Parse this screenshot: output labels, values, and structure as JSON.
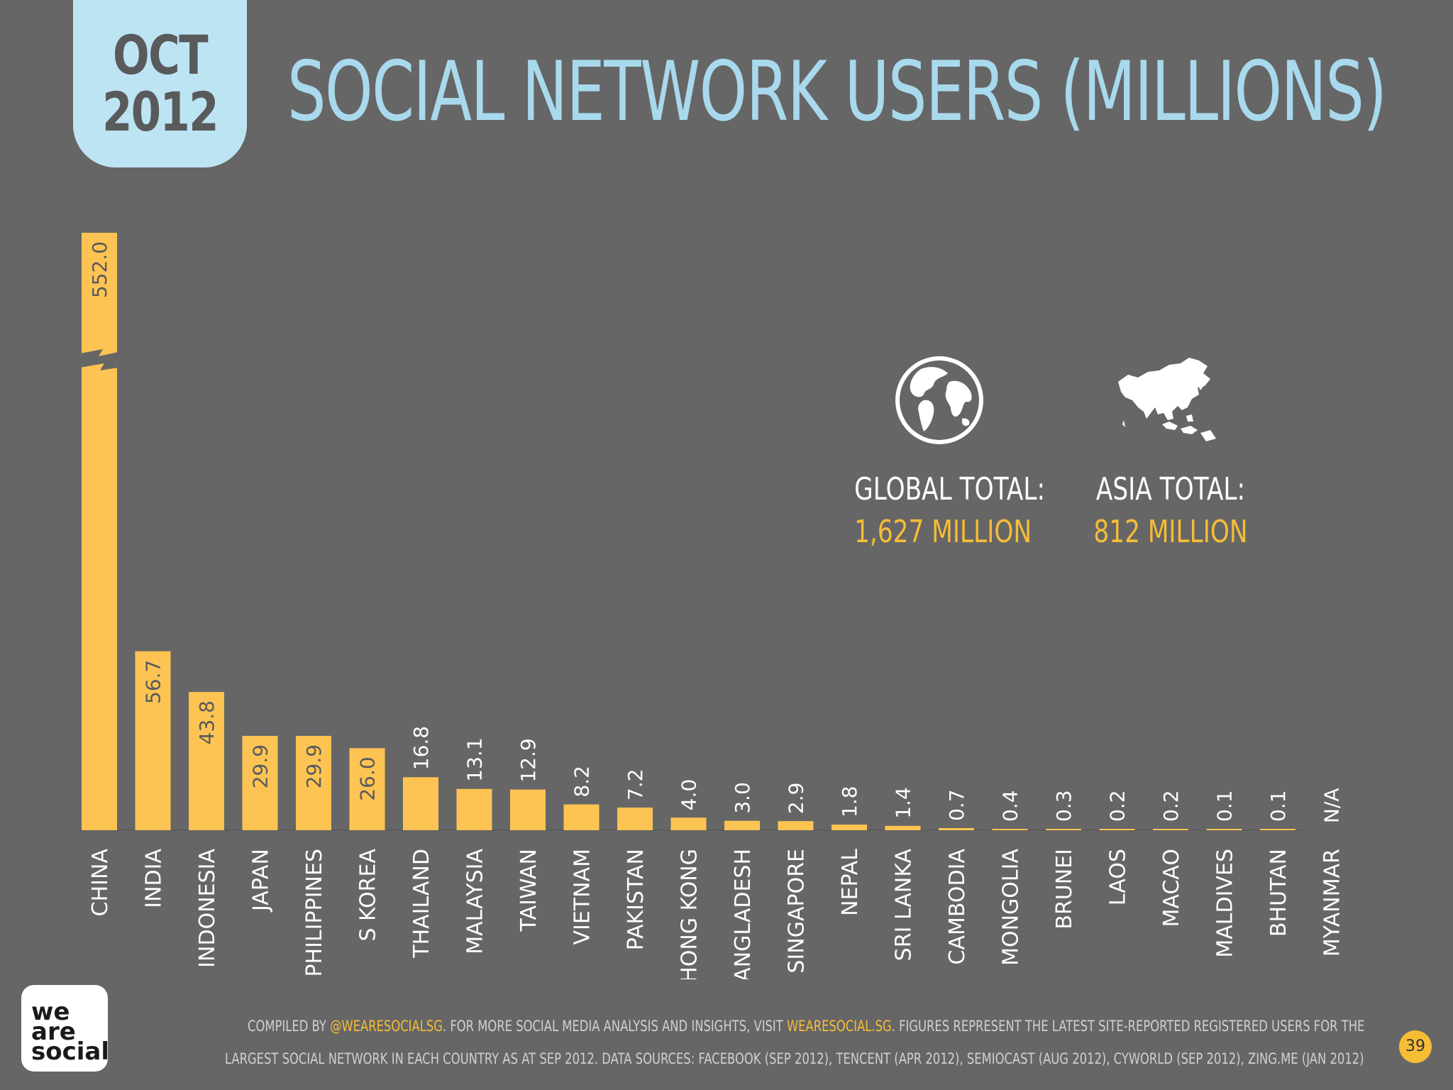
{
  "header": {
    "month": "OCT",
    "year": "2012",
    "title": "SOCIAL NETWORK USERS (MILLIONS)"
  },
  "stats": {
    "global_label": "GLOBAL TOTAL:",
    "global_value": "1,627 MILLION",
    "asia_label": "ASIA TOTAL:",
    "asia_value": "812 MILLION"
  },
  "footer": {
    "line1_a": "COMPILED BY ",
    "line1_link1": "@WEARESOCIALSG",
    "line1_b": ". FOR MORE SOCIAL MEDIA ANALYSIS AND INSIGHTS, VISIT ",
    "line1_link2": "WEARESOCIAL.SG",
    "line1_c": ". FIGURES REPRESENT THE LATEST SITE-REPORTED REGISTERED USERS FOR THE",
    "line2": "LARGEST SOCIAL NETWORK IN EACH COUNTRY AS AT SEP 2012. DATA SOURCES: FACEBOOK (SEP 2012), TENCENT (APR 2012), SEMIOCAST (AUG 2012), CYWORLD (SEP 2012), ZING.ME (JAN 2012)"
  },
  "logo": {
    "line1": "we",
    "line2": "are",
    "line3": "social"
  },
  "page_number": "39",
  "colors": {
    "bar": "#fdc453",
    "background": "#666667",
    "title": "#a9d9ec",
    "highlight": "#f6bd35"
  },
  "icons": {
    "global": "globe-icon",
    "asia": "asia-map-icon"
  },
  "chart_data": {
    "type": "bar",
    "title": "SOCIAL NETWORK USERS (MILLIONS)",
    "categories": [
      "CHINA",
      "INDIA",
      "INDONESIA",
      "JAPAN",
      "PHILIPPINES",
      "S KOREA",
      "THAILAND",
      "MALAYSIA",
      "TAIWAN",
      "VIETNAM",
      "PAKISTAN",
      "HONG KONG",
      "BANGLADESH",
      "SINGAPORE",
      "NEPAL",
      "SRI LANKA",
      "CAMBODIA",
      "MONGOLIA",
      "BRUNEI",
      "LAOS",
      "MACAO",
      "MALDIVES",
      "BHUTAN",
      "MYANMAR"
    ],
    "values": [
      552.0,
      56.7,
      43.8,
      29.9,
      29.9,
      26.0,
      16.8,
      13.1,
      12.9,
      8.2,
      7.2,
      4.0,
      3.0,
      2.9,
      1.8,
      1.4,
      0.7,
      0.4,
      0.3,
      0.2,
      0.2,
      0.1,
      0.1,
      null
    ],
    "value_labels": [
      "552.0",
      "56.7",
      "43.8",
      "29.9",
      "29.9",
      "26.0",
      "16.8",
      "13.1",
      "12.9",
      "8.2",
      "7.2",
      "4.0",
      "3.0",
      "2.9",
      "1.8",
      "1.4",
      "0.7",
      "0.4",
      "0.3",
      "0.2",
      "0.2",
      "0.1",
      "0.1",
      "N/A"
    ],
    "axis_break": true,
    "xlabel": "",
    "ylabel": ""
  }
}
